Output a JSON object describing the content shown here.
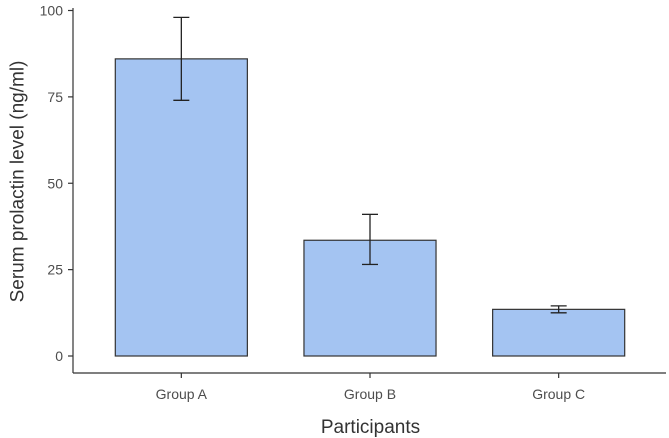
{
  "chart_data": {
    "type": "bar",
    "title": "",
    "xlabel": "Participants",
    "ylabel": "Serum prolactin level (ng/ml)",
    "categories": [
      "Group A",
      "Group B",
      "Group C"
    ],
    "values": [
      86,
      33.5,
      13.5
    ],
    "error_low": [
      74,
      26.5,
      12.5
    ],
    "error_high": [
      98,
      41,
      14.5
    ],
    "ylim": [
      0,
      100
    ],
    "yticks": [
      0,
      25,
      50,
      75,
      100
    ],
    "ytick_labels": [
      "0",
      "25",
      "50",
      "75",
      "100"
    ],
    "grid": false,
    "legend": "none",
    "bar_color": "#a4c4f2",
    "bar_edge_color": "#333333",
    "error_color": "#222222"
  }
}
